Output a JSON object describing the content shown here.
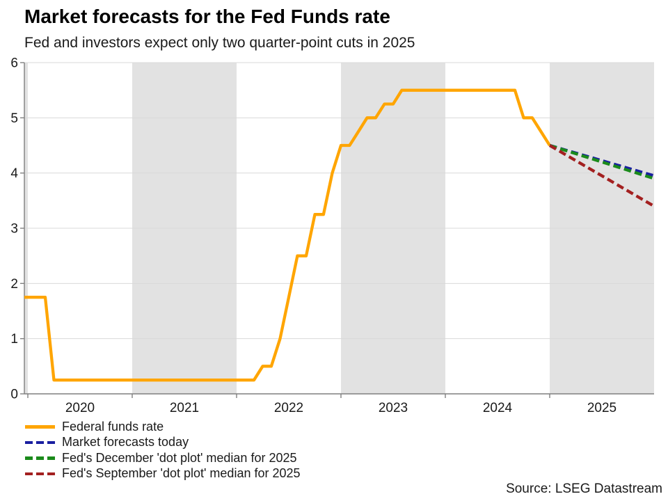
{
  "header": {
    "title": "Market forecasts for the Fed Funds rate",
    "subtitle": "Fed and investors expect only two quarter-point cuts in 2025"
  },
  "source": "Source: LSEG Datastream",
  "chart_data": {
    "type": "line",
    "title": "Market forecasts for the Fed Funds rate",
    "subtitle": "Fed and investors expect only two quarter-point cuts in 2025",
    "xlabel": "",
    "ylabel": "",
    "grid": true,
    "legend_position": "bottom-left",
    "x_domain": [
      2019.9667,
      2026.0
    ],
    "y_domain": [
      0,
      6
    ],
    "y_ticks": [
      "0",
      "1",
      "2",
      "3",
      "4",
      "5",
      "6"
    ],
    "x_year_ticks": [
      2020,
      2021,
      2022,
      2023,
      2024,
      2025
    ],
    "x_year_labels": [
      "2020",
      "2021",
      "2022",
      "2023",
      "2024",
      "2025"
    ],
    "shaded_year_bands": [
      [
        2019.9667,
        2020.0
      ],
      [
        2021.0,
        2022.0
      ],
      [
        2023.0,
        2024.0
      ],
      [
        2025.0,
        2026.0
      ]
    ],
    "band_color": "#E2E2E2",
    "gridline_color": "#D9D9D9",
    "axis_color": "#7F7F7F",
    "tick_label_color": "#1a1a1a",
    "series": [
      {
        "name": "Federal funds rate",
        "color": "#FFA500",
        "style": "solid",
        "points": [
          [
            2019.967,
            1.75
          ],
          [
            2020.167,
            1.75
          ],
          [
            2020.25,
            0.25
          ],
          [
            2022.167,
            0.25
          ],
          [
            2022.25,
            0.5
          ],
          [
            2022.333,
            0.5
          ],
          [
            2022.417,
            1.0
          ],
          [
            2022.5,
            1.75
          ],
          [
            2022.583,
            2.5
          ],
          [
            2022.667,
            2.5
          ],
          [
            2022.75,
            3.25
          ],
          [
            2022.833,
            3.25
          ],
          [
            2022.917,
            4.0
          ],
          [
            2023.0,
            4.5
          ],
          [
            2023.083,
            4.5
          ],
          [
            2023.167,
            4.75
          ],
          [
            2023.25,
            5.0
          ],
          [
            2023.333,
            5.0
          ],
          [
            2023.417,
            5.25
          ],
          [
            2023.5,
            5.25
          ],
          [
            2023.583,
            5.5
          ],
          [
            2024.667,
            5.5
          ],
          [
            2024.75,
            5.0
          ],
          [
            2024.833,
            5.0
          ],
          [
            2024.917,
            4.75
          ],
          [
            2025.0,
            4.5
          ]
        ]
      },
      {
        "name": "Market forecasts today",
        "color": "#1A1FA0",
        "style": "dashed",
        "points": [
          [
            2025.0,
            4.5
          ],
          [
            2026.0,
            3.95
          ]
        ]
      },
      {
        "name": "Fed's December 'dot plot' median for 2025",
        "color": "#1B8A1B",
        "style": "dashed",
        "points": [
          [
            2025.0,
            4.5
          ],
          [
            2026.0,
            3.9
          ]
        ]
      },
      {
        "name": "Fed's September 'dot plot' median for 2025",
        "color": "#A32020",
        "style": "dashed",
        "points": [
          [
            2025.0,
            4.5
          ],
          [
            2026.0,
            3.4
          ]
        ]
      }
    ]
  }
}
